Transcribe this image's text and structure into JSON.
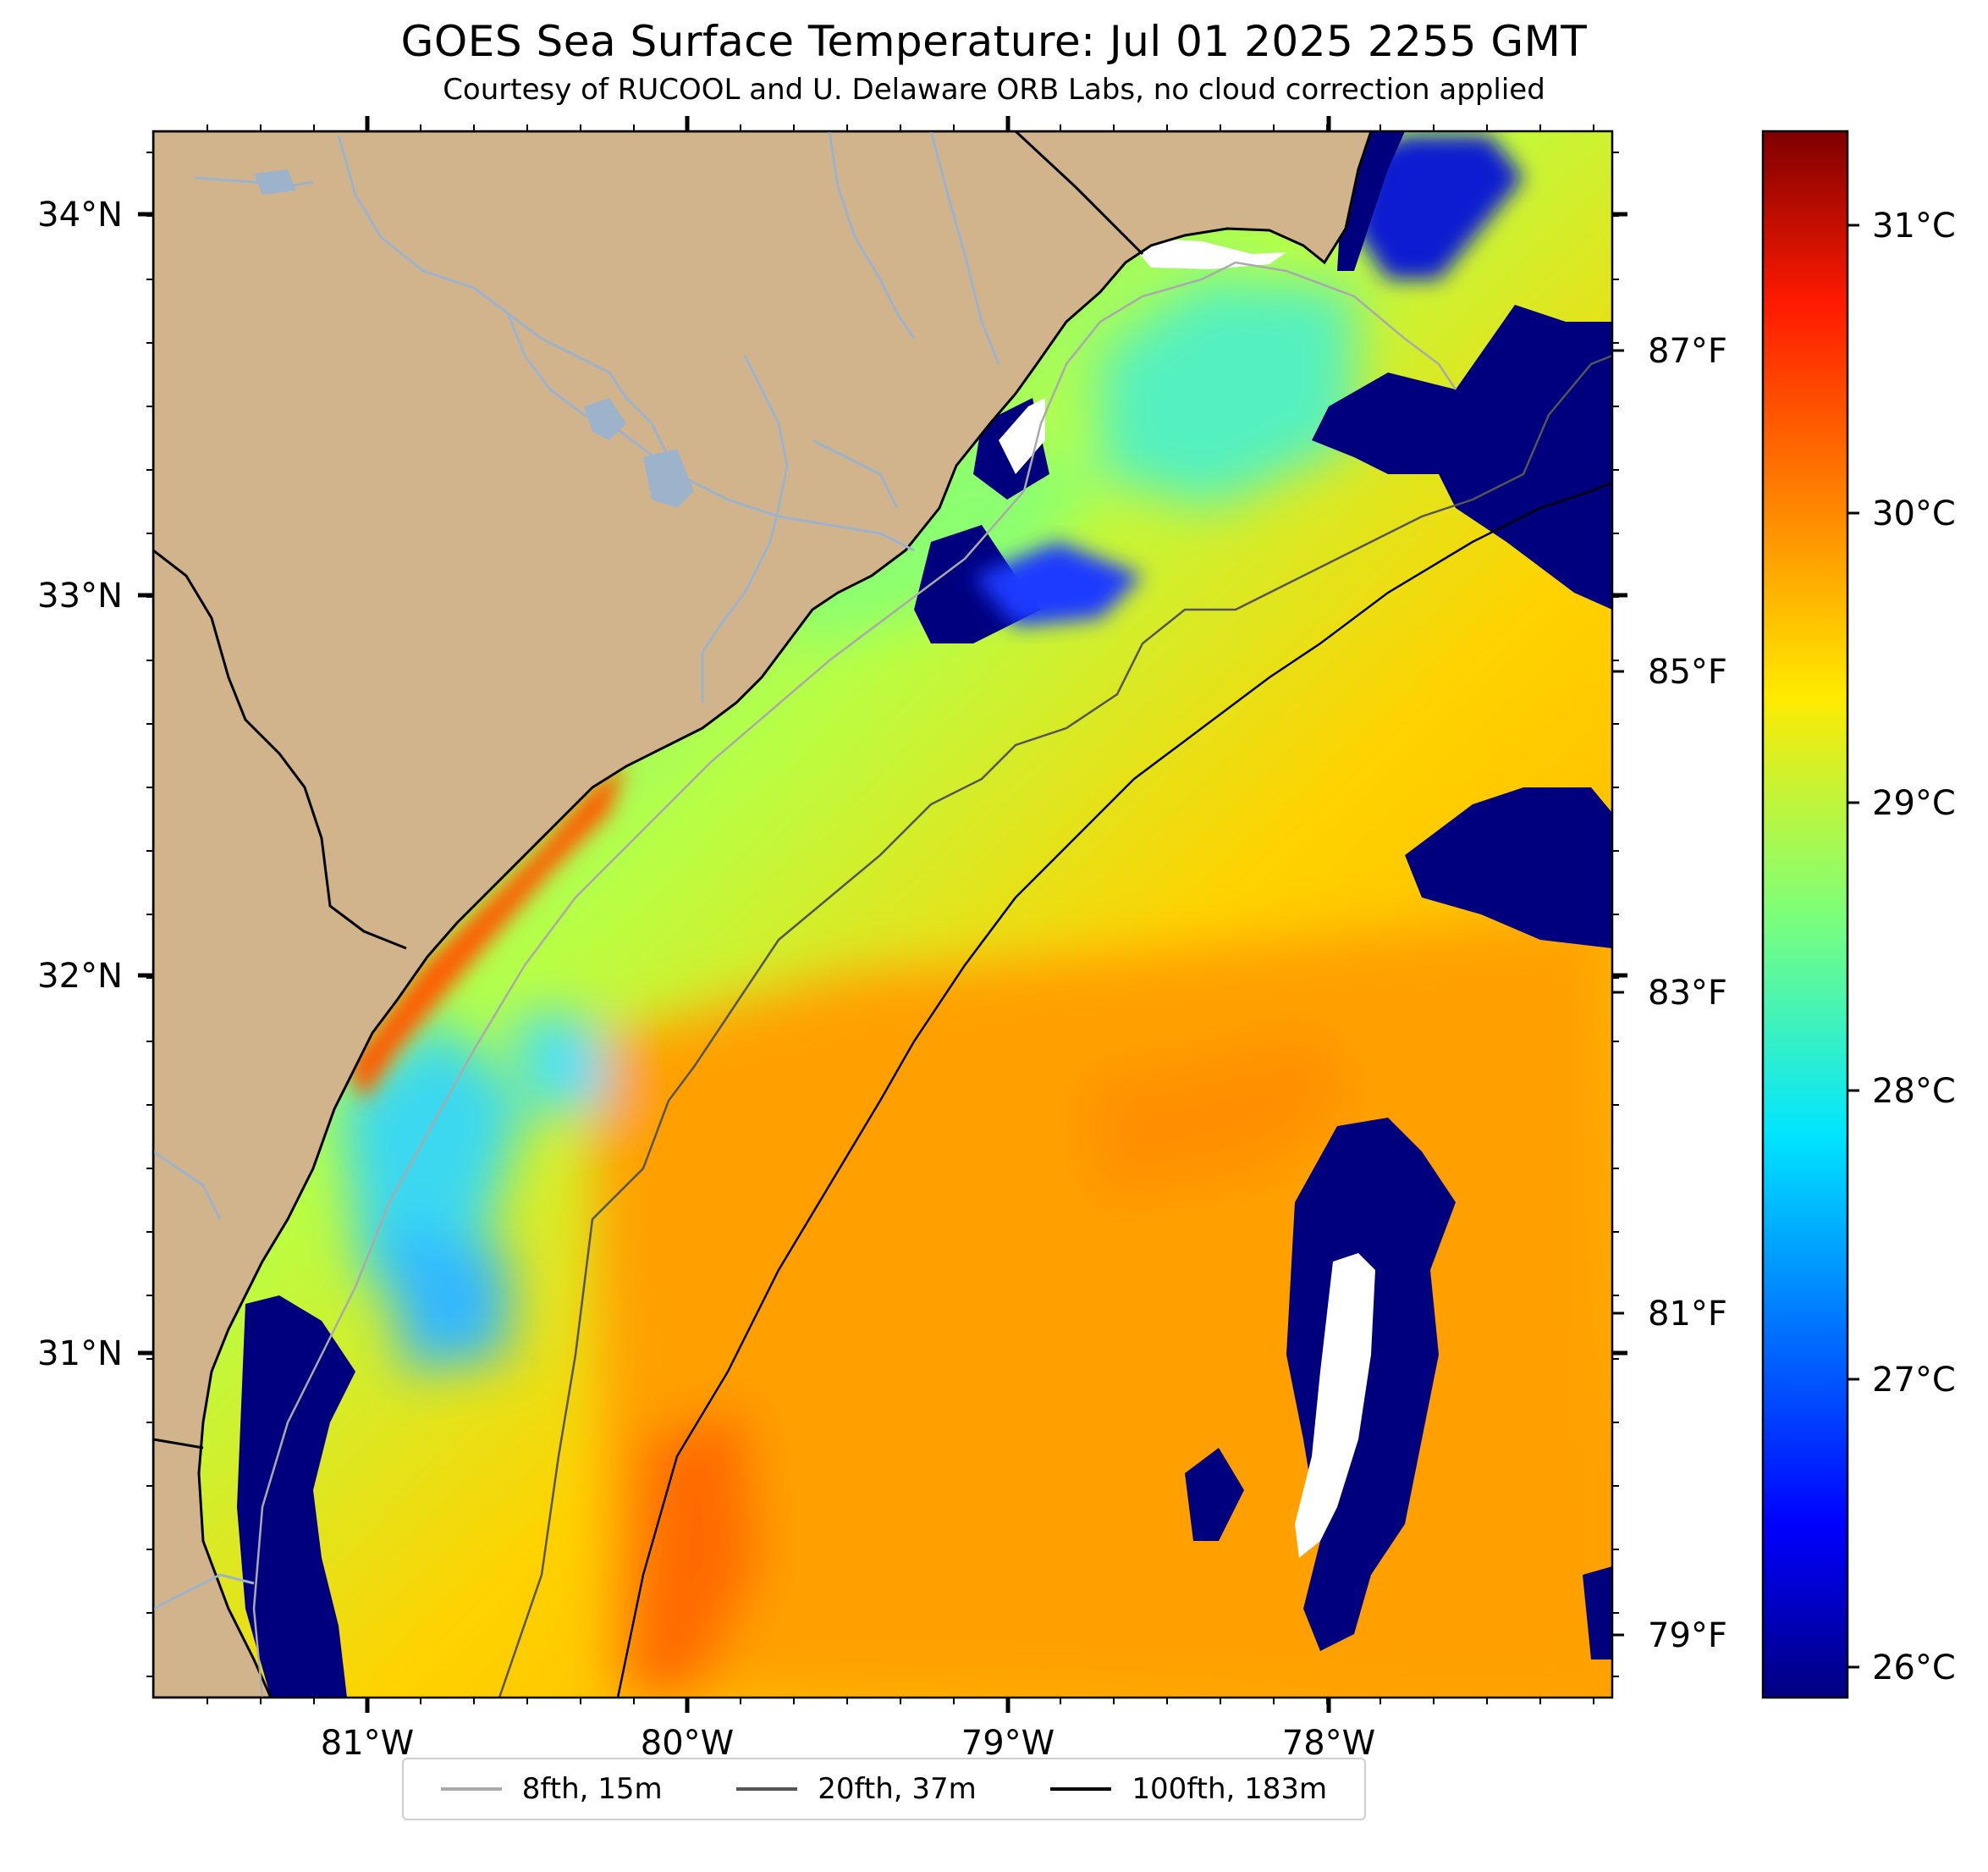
{
  "header": {
    "title": "GOES Sea Surface Temperature: Jul 01 2025 2255 GMT",
    "subtitle": "Courtesy of RUCOOL and U. Delaware ORB Labs, no cloud correction applied"
  },
  "axes": {
    "lon_ticks": [
      "81°W",
      "80°W",
      "79°W",
      "78°W"
    ],
    "lat_ticks": [
      "34°N",
      "33°N",
      "32°N",
      "31°N"
    ],
    "lon_range": [
      -81.66,
      -77.11
    ],
    "lat_range": [
      30.1,
      34.22
    ]
  },
  "colorbar": {
    "celsius_ticks": [
      "31°C",
      "30°C",
      "29°C",
      "28°C",
      "27°C",
      "26°C"
    ],
    "fahrenheit_ticks": [
      "87°F",
      "85°F",
      "83°F",
      "81°F",
      "79°F"
    ],
    "range_c": [
      25.8,
      31.2
    ],
    "colormap": "jet"
  },
  "legend": {
    "items": [
      {
        "label": "8fth, 15m",
        "color": "#aaaaaa"
      },
      {
        "label": "20fth, 37m",
        "color": "#555555"
      },
      {
        "label": "100fth, 183m",
        "color": "#000000"
      }
    ]
  },
  "colors": {
    "land": "#d2b48c",
    "river": "#9db3cc",
    "coast": "#000000",
    "cloud_low": "#00007f"
  }
}
